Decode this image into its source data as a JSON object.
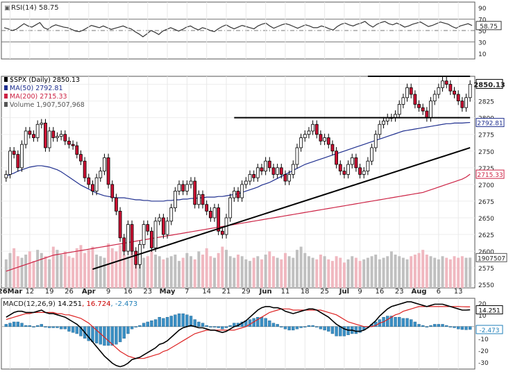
{
  "chart_data": [
    {
      "type": "line",
      "panel": "rsi",
      "title": "RSI(14)",
      "title_value": "58.75",
      "ylim": [
        0,
        100
      ],
      "yticks": [
        "90",
        "70",
        "50",
        "30",
        "10"
      ],
      "levels": [
        70,
        50,
        30
      ],
      "current_label": "58.75",
      "series": [
        {
          "name": "RSI(14)",
          "color": "#333333",
          "values": [
            55,
            53,
            50,
            52,
            57,
            62,
            58,
            56,
            60,
            64,
            55,
            52,
            57,
            60,
            58,
            56,
            55,
            52,
            49,
            48,
            51,
            55,
            59,
            57,
            55,
            58,
            55,
            52,
            54,
            56,
            58,
            55,
            53,
            48,
            44,
            39,
            44,
            50,
            47,
            43,
            49,
            52,
            55,
            52,
            49,
            52,
            56,
            58,
            54,
            51,
            55,
            53,
            50,
            48,
            53,
            57,
            60,
            56,
            53,
            56,
            59,
            57,
            55,
            53,
            58,
            61,
            63,
            58,
            54,
            57,
            60,
            62,
            60,
            57,
            54,
            57,
            60,
            58,
            55,
            55,
            58,
            56,
            53,
            51,
            57,
            61,
            63,
            60,
            58,
            61,
            63,
            66,
            60,
            56,
            61,
            64,
            66,
            62,
            60,
            63,
            60,
            56,
            58,
            61,
            63,
            65,
            61,
            57,
            59,
            62,
            65,
            63,
            61,
            57,
            54,
            58,
            60,
            62,
            58.75
          ]
        }
      ]
    },
    {
      "type": "candlestick",
      "panel": "price",
      "title": "$SPX (Daily)",
      "title_value": "2850.13",
      "ylim": [
        2545,
        2862
      ],
      "yticks": [
        "2850",
        "2825",
        "2800",
        "2775",
        "2750",
        "2725",
        "2700",
        "2675",
        "2650",
        "2625",
        "2600",
        "2575",
        "2550"
      ],
      "xtick_labels": [
        "26Mar",
        "12",
        "19",
        "26",
        "Apr",
        "9",
        "16",
        "23",
        "May",
        "7",
        "14",
        "21",
        "29",
        "Jun",
        "11",
        "18",
        "25",
        "Jul",
        "9",
        "16",
        "23",
        "Aug",
        "6",
        "13"
      ],
      "current_label": "2850.13",
      "legend": [
        {
          "label": "$SPX (Daily) 2850.13",
          "color": "#000000"
        },
        {
          "label": "MA(50) 2792.81",
          "color": "#1f2f8f"
        },
        {
          "label": "MA(200) 2715.33",
          "color": "#cc2244"
        },
        {
          "label": "Volume 1,907,507,968",
          "color": "#555555"
        }
      ],
      "ma_labels": [
        {
          "text": "2792.81",
          "value": 2792.81
        },
        {
          "text": "2715.33",
          "value": 2715.33
        }
      ],
      "volume_label": "1907507",
      "colors": {
        "up": "#ffffff",
        "down": "#cc1133",
        "outline": "#000000",
        "ma50": "#1f2f8f",
        "ma200": "#cc2244",
        "vol_up": "#c0c0c0",
        "vol_down": "#f0b8c0"
      },
      "close": [
        2715,
        2750,
        2745,
        2725,
        2760,
        2780,
        2775,
        2770,
        2790,
        2792,
        2755,
        2780,
        2770,
        2772,
        2775,
        2765,
        2760,
        2758,
        2745,
        2735,
        2710,
        2700,
        2690,
        2710,
        2720,
        2740,
        2700,
        2680,
        2660,
        2620,
        2600,
        2640,
        2600,
        2580,
        2610,
        2640,
        2630,
        2605,
        2645,
        2650,
        2625,
        2645,
        2665,
        2690,
        2700,
        2690,
        2700,
        2705,
        2670,
        2685,
        2670,
        2660,
        2650,
        2665,
        2630,
        2625,
        2650,
        2680,
        2690,
        2680,
        2700,
        2705,
        2715,
        2710,
        2725,
        2720,
        2735,
        2725,
        2715,
        2725,
        2715,
        2705,
        2715,
        2730,
        2755,
        2770,
        2775,
        2780,
        2790,
        2775,
        2765,
        2770,
        2760,
        2750,
        2730,
        2720,
        2715,
        2730,
        2740,
        2725,
        2715,
        2720,
        2735,
        2755,
        2775,
        2790,
        2795,
        2800,
        2800,
        2805,
        2820,
        2830,
        2845,
        2835,
        2820,
        2815,
        2810,
        2800,
        2825,
        2835,
        2845,
        2855,
        2850,
        2840,
        2835,
        2825,
        2815,
        2830,
        2850.13
      ],
      "ma50": [
        2712,
        2715,
        2717,
        2720,
        2722,
        2724,
        2726,
        2727,
        2728,
        2728,
        2727,
        2726,
        2724,
        2722,
        2719,
        2715,
        2711,
        2707,
        2703,
        2699,
        2696,
        2693,
        2690,
        2687,
        2685,
        2683,
        2682,
        2681,
        2680,
        2680,
        2680,
        2679,
        2678,
        2677,
        2677,
        2676,
        2676,
        2675,
        2675,
        2675,
        2675,
        2676,
        2676,
        2677,
        2677,
        2678,
        2678,
        2679,
        2679,
        2680,
        2680,
        2681,
        2681,
        2681,
        2682,
        2682,
        2683,
        2684,
        2685,
        2686,
        2688,
        2690,
        2692,
        2694,
        2696,
        2699,
        2701,
        2703,
        2706,
        2709,
        2712,
        2715,
        2718,
        2721,
        2724,
        2727,
        2730,
        2732,
        2734,
        2736,
        2738,
        2740,
        2742,
        2744,
        2746,
        2748,
        2750,
        2752,
        2754,
        2756,
        2758,
        2760,
        2762,
        2764,
        2766,
        2768,
        2770,
        2772,
        2774,
        2776,
        2778,
        2780,
        2781,
        2782,
        2783,
        2784,
        2785,
        2786,
        2787,
        2788,
        2789,
        2790,
        2791,
        2791,
        2792,
        2792,
        2792,
        2792.5,
        2792.81
      ],
      "ma200": [
        2570,
        2572,
        2574,
        2576,
        2578,
        2580,
        2582,
        2584,
        2586,
        2588,
        2590,
        2592,
        2594,
        2595,
        2596,
        2597,
        2598,
        2599,
        2600,
        2601,
        2602,
        2603,
        2604,
        2605,
        2606,
        2607,
        2608,
        2609,
        2610,
        2611,
        2612,
        2613,
        2614,
        2615,
        2616,
        2617,
        2618,
        2619,
        2620,
        2621,
        2622,
        2623,
        2624,
        2625,
        2626,
        2627,
        2628,
        2629,
        2630,
        2631,
        2632,
        2633,
        2634,
        2635,
        2636,
        2637,
        2638,
        2639,
        2640,
        2641,
        2642,
        2643,
        2644,
        2645,
        2646,
        2647,
        2648,
        2649,
        2650,
        2651,
        2652,
        2653,
        2654,
        2655,
        2656,
        2657,
        2658,
        2659,
        2660,
        2661,
        2662,
        2663,
        2664,
        2665,
        2666,
        2667,
        2668,
        2669,
        2670,
        2671,
        2672,
        2673,
        2674,
        2675,
        2676,
        2677,
        2678,
        2679,
        2680,
        2681,
        2682,
        2683,
        2684,
        2685,
        2686,
        2687,
        2688,
        2690,
        2692,
        2694,
        2696,
        2698,
        2700,
        2702,
        2704,
        2706,
        2708,
        2711,
        2715.33
      ],
      "volume": [
        1.8,
        2.2,
        2.5,
        2.0,
        1.9,
        2.1,
        2.3,
        1.7,
        2.4,
        2.2,
        2.0,
        1.8,
        2.6,
        2.4,
        2.1,
        2.3,
        2.0,
        1.9,
        2.5,
        2.7,
        2.2,
        2.4,
        2.6,
        2.1,
        2.0,
        1.9,
        2.8,
        2.5,
        2.3,
        2.7,
        2.1,
        2.0,
        2.4,
        2.2,
        2.6,
        1.9,
        2.0,
        2.3,
        2.1,
        2.0,
        1.8,
        1.9,
        2.0,
        2.1,
        1.7,
        1.9,
        2.2,
        2.0,
        1.8,
        2.3,
        2.1,
        2.5,
        2.0,
        1.9,
        2.2,
        2.6,
        2.4,
        2.0,
        1.9,
        2.1,
        2.0,
        1.8,
        1.7,
        1.9,
        2.0,
        1.8,
        2.1,
        2.3,
        2.0,
        1.9,
        1.8,
        2.2,
        2.0,
        1.9,
        2.4,
        2.6,
        2.2,
        2.0,
        1.9,
        1.8,
        2.1,
        2.0,
        1.8,
        1.7,
        2.0,
        1.9,
        1.6,
        1.8,
        2.0,
        1.9,
        1.7,
        1.8,
        1.9,
        2.0,
        2.1,
        1.8,
        1.9,
        2.0,
        2.3,
        2.1,
        2.0,
        1.9,
        1.8,
        2.0,
        2.1,
        2.2,
        2.4,
        2.1,
        2.0,
        1.9,
        1.8,
        2.0,
        1.9,
        1.8,
        2.0,
        1.9,
        2.0,
        1.9,
        1.91
      ],
      "volume_ylim": [
        0,
        3.5
      ],
      "annotations": {
        "resistance_top": {
          "value": 2862,
          "from_index": 92,
          "to_index": 118
        },
        "support_mid": {
          "value": 2800,
          "from_index": 58,
          "to_index": 118
        },
        "trendline_low": {
          "from_index": 22,
          "from_value": 2573,
          "to_index": 118,
          "to_value": 2755
        }
      }
    },
    {
      "type": "line",
      "panel": "macd",
      "title": "MACD(12,26,9)",
      "values_text": [
        "14.251",
        "16.724",
        "-2.473"
      ],
      "value_colors": [
        "#000000",
        "#cc0000",
        "#1f7fb8"
      ],
      "ylim": [
        -36,
        24
      ],
      "yticks": [
        "20",
        "10",
        "0",
        "-10",
        "-20",
        "-30"
      ],
      "current_labels": [
        {
          "text": "14.251",
          "value": 14.251
        },
        {
          "text": "-2.473",
          "value": -2.473
        }
      ],
      "series": [
        {
          "name": "MACD(12,26,9)",
          "color": "#000000",
          "values": [
            8,
            10,
            12,
            13,
            13,
            12,
            12,
            12,
            13,
            14,
            12,
            11,
            11,
            10,
            9,
            8,
            6,
            4,
            2,
            -1,
            -5,
            -9,
            -13,
            -17,
            -21,
            -25,
            -28,
            -31,
            -33,
            -34,
            -33,
            -31,
            -28,
            -27,
            -26,
            -24,
            -22,
            -20,
            -18,
            -15,
            -14,
            -12,
            -9,
            -6,
            -3,
            -1,
            0,
            1,
            0,
            -1,
            -1,
            -2,
            -3,
            -3,
            -4,
            -5,
            -4,
            -2,
            0,
            1,
            3,
            5,
            8,
            11,
            14,
            16,
            17,
            17,
            16,
            16,
            15,
            13,
            12,
            11,
            12,
            13,
            14,
            15,
            15,
            14,
            12,
            10,
            8,
            5,
            2,
            0,
            -2,
            -3,
            -3,
            -4,
            -4,
            -3,
            -1,
            2,
            5,
            9,
            12,
            15,
            17,
            18,
            19,
            20,
            21,
            21,
            20,
            19,
            18,
            17,
            18,
            19,
            19,
            19,
            18,
            17,
            16,
            15,
            14,
            14,
            14.251
          ]
        },
        {
          "name": "Signal",
          "color": "#dd2222",
          "values": [
            6,
            7,
            8,
            9,
            10,
            11,
            11,
            12,
            12,
            12,
            12,
            12,
            12,
            11,
            11,
            10,
            10,
            9,
            8,
            7,
            5,
            3,
            0,
            -3,
            -6,
            -9,
            -12,
            -15,
            -18,
            -21,
            -23,
            -25,
            -26,
            -27,
            -27,
            -27,
            -26,
            -25,
            -24,
            -23,
            -21,
            -20,
            -18,
            -16,
            -14,
            -12,
            -10,
            -8,
            -6,
            -5,
            -4,
            -3,
            -3,
            -3,
            -3,
            -3,
            -3,
            -3,
            -3,
            -2,
            -1,
            0,
            2,
            4,
            6,
            8,
            10,
            12,
            13,
            14,
            15,
            15,
            15,
            14,
            14,
            14,
            14,
            14,
            14,
            14,
            14,
            13,
            12,
            11,
            10,
            8,
            6,
            4,
            3,
            2,
            1,
            0,
            0,
            0,
            1,
            3,
            4,
            6,
            8,
            10,
            11,
            13,
            14,
            15,
            16,
            17,
            17,
            17,
            17,
            17,
            17,
            17,
            17,
            17,
            17,
            17,
            16.9,
            16.8,
            16.724
          ]
        },
        {
          "name": "Histogram",
          "color": "#3a8fc4",
          "type": "bar",
          "values": [
            2,
            3,
            4,
            4,
            3,
            1,
            1,
            0,
            1,
            2,
            0,
            -1,
            -1,
            -1,
            -2,
            -2,
            -4,
            -5,
            -6,
            -8,
            -10,
            -12,
            -13,
            -14,
            -15,
            -16,
            -16,
            -16,
            -15,
            -13,
            -10,
            -6,
            -2,
            0,
            1,
            3,
            4,
            5,
            6,
            8,
            7,
            8,
            9,
            10,
            11,
            11,
            10,
            9,
            6,
            4,
            3,
            1,
            0,
            0,
            -1,
            -2,
            -1,
            1,
            3,
            3,
            4,
            5,
            6,
            7,
            8,
            8,
            7,
            5,
            3,
            2,
            0,
            -2,
            -3,
            -3,
            -2,
            -1,
            0,
            1,
            1,
            0,
            -2,
            -3,
            -4,
            -6,
            -8,
            -8,
            -8,
            -7,
            -6,
            -6,
            -5,
            -3,
            -1,
            2,
            4,
            6,
            8,
            9,
            9,
            8,
            8,
            7,
            7,
            6,
            4,
            2,
            1,
            0,
            1,
            2,
            2,
            2,
            1,
            0,
            -1,
            -2,
            -2.5,
            -2.7,
            -2.473
          ]
        }
      ]
    }
  ]
}
